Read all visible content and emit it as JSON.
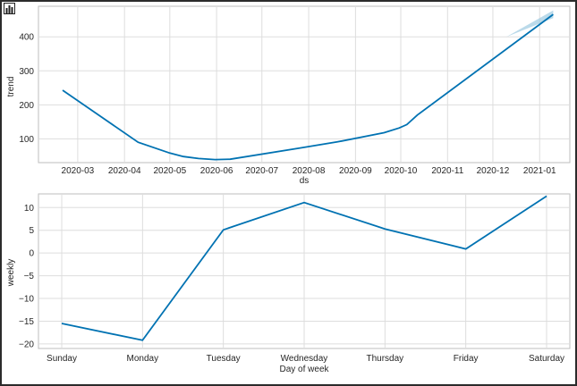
{
  "chart_data": [
    {
      "type": "line",
      "title": "",
      "xlabel": "ds",
      "ylabel": "trend",
      "xlim": [
        "2020-02-04",
        "2021-01-21"
      ],
      "ylim": [
        30,
        490
      ],
      "grid": true,
      "x_ticks": [
        "2020-03",
        "2020-04",
        "2020-05",
        "2020-06",
        "2020-07",
        "2020-08",
        "2020-09",
        "2020-10",
        "2020-11",
        "2020-12",
        "2021-01"
      ],
      "y_ticks": [
        100,
        200,
        300,
        400
      ],
      "series": [
        {
          "x": [
            "2020-02-20",
            "2020-04-10",
            "2020-05-01",
            "2020-05-10",
            "2020-05-20",
            "2020-05-31",
            "2020-06-10",
            "2020-07-25",
            "2020-08-20",
            "2020-09-20",
            "2020-09-30",
            "2020-10-05",
            "2020-10-12",
            "2021-01-10"
          ],
          "y": [
            243,
            90,
            58,
            48,
            42,
            39,
            40,
            72,
            91,
            118,
            132,
            142,
            170,
            466
          ]
        }
      ],
      "uncertainty_band": {
        "x": [
          "2020-12-10",
          "2021-01-10"
        ],
        "upper": [
          400,
          478
        ],
        "lower": [
          400,
          455
        ]
      },
      "colors": {
        "line": "#0072B2",
        "band": "#9ecae1",
        "grid": "#dddddd"
      }
    },
    {
      "type": "line",
      "title": "",
      "xlabel": "Day of week",
      "ylabel": "weekly",
      "categories": [
        "Sunday",
        "Monday",
        "Tuesday",
        "Wednesday",
        "Thursday",
        "Friday",
        "Saturday"
      ],
      "values": [
        -15.5,
        -19.2,
        5.1,
        11.1,
        5.3,
        0.9,
        12.5
      ],
      "ylim": [
        -21,
        13
      ],
      "y_ticks": [
        -20,
        -15,
        -10,
        -5,
        0,
        5,
        10
      ],
      "grid": true,
      "colors": {
        "line": "#0072B2",
        "grid": "#dddddd"
      }
    }
  ]
}
